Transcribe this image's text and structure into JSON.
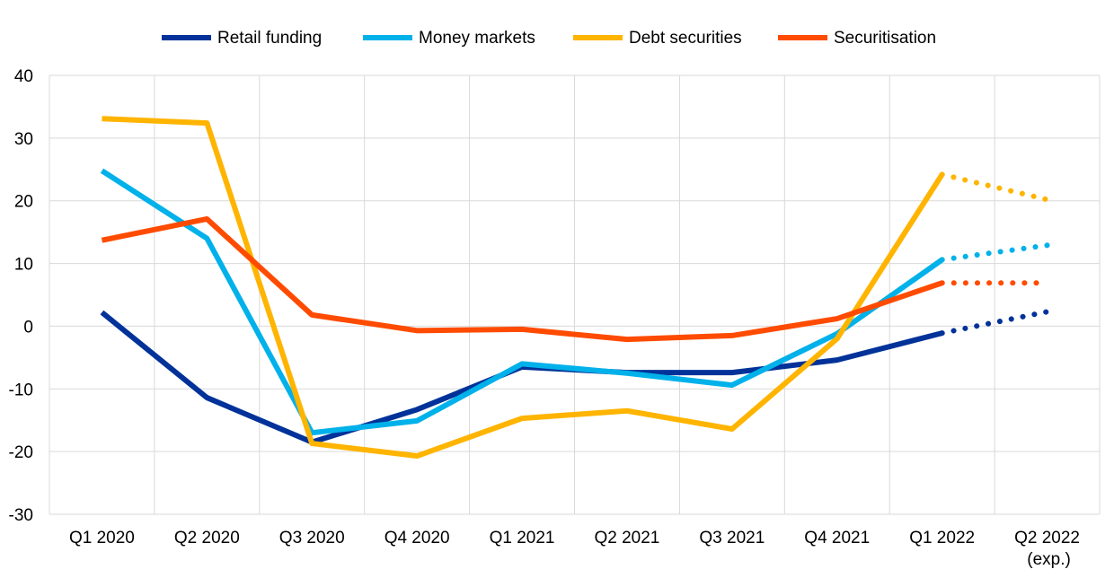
{
  "chart_data": {
    "type": "line",
    "title": "",
    "xlabel": "",
    "ylabel": "",
    "categories": [
      "Q1 2020",
      "Q2 2020",
      "Q3 2020",
      "Q4 2020",
      "Q1 2021",
      "Q2 2021",
      "Q3 2021",
      "Q4 2021",
      "Q1 2022",
      "Q2 2022"
    ],
    "category_sublabels": [
      "",
      "",
      "",
      "",
      "",
      "",
      "",
      "",
      "",
      "(exp.)"
    ],
    "ylim": [
      -30,
      40
    ],
    "yticks": [
      -30,
      -20,
      -10,
      0,
      10,
      20,
      30,
      40
    ],
    "grid": true,
    "legend_position": "top",
    "expected_from_index": 8,
    "series": [
      {
        "name": "Retail funding",
        "color": "#003299",
        "values": [
          2.2,
          -11.4,
          -18.5,
          -13.3,
          -6.5,
          -7.4,
          -7.4,
          -5.4,
          -1.1,
          2.3
        ]
      },
      {
        "name": "Money markets",
        "color": "#00B1EA",
        "values": [
          24.8,
          14.0,
          -17.0,
          -15.1,
          -6.0,
          -7.5,
          -9.4,
          -1.2,
          10.6,
          12.9
        ]
      },
      {
        "name": "Debt securities",
        "color": "#FFB400",
        "values": [
          33.1,
          32.4,
          -18.7,
          -20.7,
          -14.7,
          -13.5,
          -16.4,
          -2.0,
          24.2,
          20.2
        ]
      },
      {
        "name": "Securitisation",
        "color": "#FF4B00",
        "values": [
          13.7,
          17.1,
          1.8,
          -0.7,
          -0.5,
          -2.1,
          -1.5,
          1.2,
          6.9,
          6.9
        ]
      }
    ]
  }
}
